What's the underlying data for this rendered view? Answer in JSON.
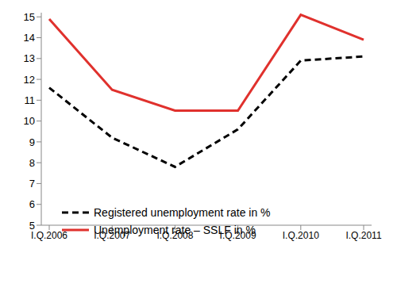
{
  "chart_data": {
    "type": "line",
    "categories": [
      "I.Q.2006",
      "I.Q.2007",
      "I.Q.2008",
      "I.Q.2009",
      "I.Q.2010",
      "I.Q.2011"
    ],
    "series": [
      {
        "name": "Registered unemployment rate in %",
        "color": "#000000",
        "line_style": "dashed",
        "marker": "none",
        "values": [
          11.6,
          9.2,
          7.8,
          9.6,
          12.9,
          13.1
        ]
      },
      {
        "name": "Unemployment rate – SSLF in %",
        "color": "#e0312d",
        "line_style": "solid",
        "marker": "none",
        "values": [
          14.9,
          11.5,
          10.5,
          10.5,
          15.1,
          13.9
        ]
      }
    ],
    "ylim": [
      5,
      15.2
    ],
    "yticks": [
      5,
      6,
      7,
      8,
      9,
      10,
      11,
      12,
      13,
      14,
      15
    ],
    "grid": false,
    "legend": "lower left"
  }
}
